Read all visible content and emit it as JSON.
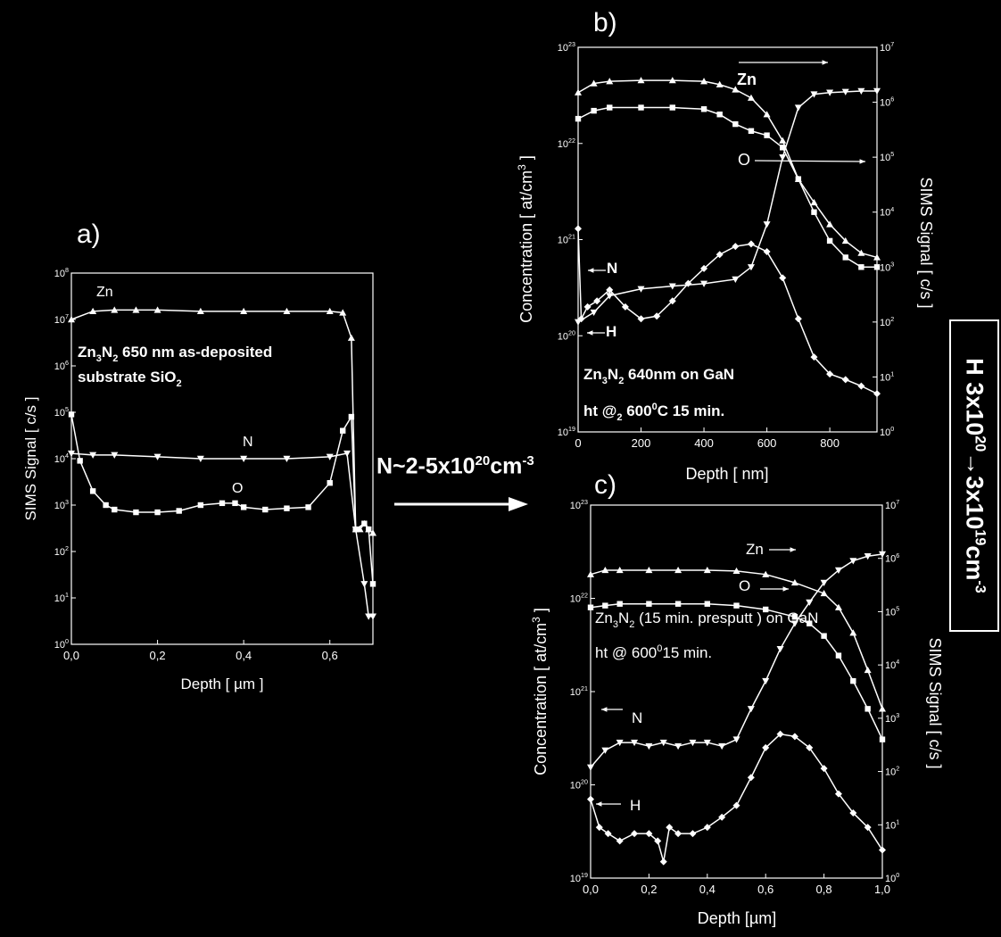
{
  "colors": {
    "background": "#000000",
    "foreground": "#ffffff"
  },
  "middle_note": {
    "main": "N~2-5x10",
    "exp": "20",
    "unit": "cm",
    "unit_exp": "-3"
  },
  "side_note": {
    "part1": "H 3x10",
    "exp1": "20",
    "arrow": "→",
    "part2": "3x10",
    "exp2": "19",
    "unit": "cm",
    "unit_exp": "-3"
  },
  "chart_data": [
    {
      "panel": "a",
      "type": "line",
      "panel_label": "a)",
      "xlabel": "Depth  [  µm  ]",
      "ylabel": "SIMS Signal  [  c/s  ]",
      "xlim": [
        0,
        0.7
      ],
      "ylim": [
        1,
        100000000
      ],
      "yscale": "log",
      "xticks": [
        "0,0",
        "0,2",
        "0,4",
        "0,6"
      ],
      "yticks_exp": [
        "0",
        "1",
        "2",
        "3",
        "4",
        "5",
        "6",
        "7",
        "8"
      ],
      "annotations": [
        "Zn",
        "N",
        "O"
      ],
      "inner_text": [
        {
          "base": "Zn",
          "sub1": "3",
          "mid": "N",
          "sub2": "2",
          "rest": " 650 nm as-deposited"
        },
        {
          "base": "substrate SiO",
          "sub1": "2"
        }
      ],
      "series": [
        {
          "name": "Zn",
          "marker": "triangle-up",
          "x": [
            0,
            0.05,
            0.1,
            0.15,
            0.2,
            0.3,
            0.4,
            0.5,
            0.6,
            0.63,
            0.65,
            0.66,
            0.67,
            0.68,
            0.69,
            0.7
          ],
          "values": [
            10000000,
            15000000,
            16000000,
            16000000,
            16000000,
            15000000,
            15000000,
            15000000,
            15000000,
            14000000,
            4000000,
            300,
            300,
            400,
            300,
            250
          ]
        },
        {
          "name": "N",
          "marker": "triangle-down",
          "x": [
            0,
            0.05,
            0.1,
            0.2,
            0.3,
            0.4,
            0.5,
            0.6,
            0.64,
            0.66,
            0.68,
            0.69,
            0.7
          ],
          "values": [
            13000,
            12000,
            12000,
            11000,
            10000,
            10000,
            10000,
            11000,
            13000,
            300,
            20,
            4,
            4
          ]
        },
        {
          "name": "O",
          "marker": "square",
          "x": [
            0,
            0.02,
            0.05,
            0.08,
            0.1,
            0.15,
            0.2,
            0.25,
            0.3,
            0.35,
            0.38,
            0.4,
            0.45,
            0.5,
            0.55,
            0.6,
            0.63,
            0.65,
            0.66,
            0.68,
            0.69,
            0.7
          ],
          "values": [
            90000,
            9000,
            2000,
            1000,
            800,
            700,
            700,
            750,
            1000,
            1100,
            1100,
            900,
            800,
            850,
            900,
            3000,
            40000,
            80000,
            300,
            400,
            300,
            20
          ]
        }
      ]
    },
    {
      "panel": "b",
      "type": "line",
      "panel_label": "b)",
      "xlabel": "Depth  [  nm]",
      "ylabel": "Concentration  [  at/cm",
      "ylabel_sup": "3",
      "ylabel_end": "  ]",
      "y2label": "SIMS Signal  [  c/s  ]",
      "xlim": [
        0,
        950
      ],
      "xticks": [
        "0",
        "200",
        "400",
        "600",
        "800"
      ],
      "ylim": [
        10000000000000000000,
        100000000000000000000000
      ],
      "yscale": "log",
      "yticks_exp": [
        "19",
        "20",
        "21",
        "22",
        "23"
      ],
      "y2ticks_exp": [
        "0",
        "1",
        "2",
        "3",
        "4",
        "5",
        "6",
        "7"
      ],
      "annotations": [
        "Zn",
        "O",
        "N",
        "H"
      ],
      "inner_text": [
        {
          "base": "Zn",
          "sub1": "3",
          "mid": "N",
          "sub2": "2",
          "rest": " 640nm on GaN"
        },
        {
          "base": "ht @",
          "sub1": "2",
          "rest": " 600",
          "sup": "0",
          "rest2": "C 15 min."
        }
      ],
      "series": [
        {
          "name": "Zn",
          "marker": "triangle-up",
          "axis": "right",
          "x": [
            0,
            50,
            100,
            200,
            300,
            400,
            450,
            500,
            550,
            600,
            650,
            700,
            750,
            800,
            850,
            900,
            950
          ],
          "values": [
            1500000,
            2200000,
            2400000,
            2500000,
            2500000,
            2400000,
            2100000,
            1700000,
            1200000,
            600000,
            200000,
            40000,
            15000,
            6000,
            3000,
            1800,
            1500
          ]
        },
        {
          "name": "O",
          "marker": "square",
          "axis": "right",
          "x": [
            0,
            50,
            100,
            200,
            300,
            400,
            450,
            500,
            550,
            600,
            650,
            700,
            750,
            800,
            850,
            900,
            950
          ],
          "values": [
            500000,
            700000,
            800000,
            800000,
            800000,
            750000,
            600000,
            400000,
            300000,
            250000,
            150000,
            40000,
            10000,
            3000,
            1500,
            1000,
            1000
          ]
        },
        {
          "name": "N",
          "marker": "triangle-down",
          "axis": "right",
          "x": [
            0,
            50,
            100,
            200,
            300,
            400,
            500,
            550,
            600,
            650,
            700,
            750,
            800,
            850,
            900,
            950
          ],
          "values": [
            100,
            150,
            300,
            400,
            450,
            500,
            600,
            1000,
            6000,
            100000,
            800000,
            1400000,
            1500000,
            1550000,
            1600000,
            1600000
          ]
        },
        {
          "name": "H",
          "marker": "diamond",
          "axis": "left",
          "x": [
            0,
            10,
            30,
            60,
            100,
            150,
            200,
            250,
            300,
            350,
            400,
            450,
            500,
            550,
            600,
            650,
            700,
            750,
            800,
            850,
            900,
            950
          ],
          "values": [
            1300000000000000000000,
            150000000000000000000,
            200000000000000000000,
            230000000000000000000,
            300000000000000000000,
            200000000000000000000,
            150000000000000000000,
            160000000000000000000,
            230000000000000000000,
            350000000000000000000,
            500000000000000000000,
            700000000000000000000,
            850000000000000000000,
            900000000000000000000,
            750000000000000000000,
            400000000000000000000,
            150000000000000000000,
            60000000000000000000,
            40000000000000000000,
            35000000000000000000,
            30000000000000000000,
            25000000000000000000
          ]
        }
      ]
    },
    {
      "panel": "c",
      "type": "line",
      "panel_label": "c)",
      "xlabel": "Depth [µm]",
      "ylabel": "Concentration  [  at/cm",
      "ylabel_sup": "3",
      "ylabel_end": "  ]",
      "y2label": "SIMS Signal  [  c/s  ]",
      "xlim": [
        0,
        1.0
      ],
      "xticks": [
        "0,0",
        "0,2",
        "0,4",
        "0,6",
        "0,8",
        "1,0"
      ],
      "ylim": [
        10000000000000000000,
        100000000000000000000000
      ],
      "yscale": "log",
      "yticks_exp": [
        "19",
        "20",
        "21",
        "22",
        "23"
      ],
      "y2ticks_exp": [
        "0",
        "1",
        "2",
        "3",
        "4",
        "5",
        "6",
        "7"
      ],
      "annotations": [
        "Zn",
        "O",
        "N",
        "H"
      ],
      "inner_text": [
        {
          "base": "Zn",
          "sub1": "3",
          "mid": "N",
          "sub2": "2",
          "rest": "  (15 min. presputt ) on GaN"
        },
        {
          "base": "ht @ 600",
          "sup": "0",
          "rest": "15 min."
        }
      ],
      "series": [
        {
          "name": "Zn",
          "marker": "triangle-up",
          "axis": "right",
          "x": [
            0,
            0.05,
            0.1,
            0.2,
            0.3,
            0.4,
            0.5,
            0.6,
            0.7,
            0.8,
            0.85,
            0.9,
            0.95,
            1.0
          ],
          "values": [
            500000,
            600000,
            600000,
            600000,
            600000,
            600000,
            580000,
            500000,
            350000,
            220000,
            120000,
            40000,
            8000,
            1500
          ]
        },
        {
          "name": "O",
          "marker": "square",
          "axis": "right",
          "x": [
            0,
            0.05,
            0.1,
            0.2,
            0.3,
            0.4,
            0.5,
            0.6,
            0.7,
            0.75,
            0.8,
            0.85,
            0.9,
            0.95,
            1.0
          ],
          "values": [
            120000,
            130000,
            140000,
            140000,
            140000,
            140000,
            130000,
            110000,
            80000,
            60000,
            35000,
            15000,
            5000,
            1500,
            400
          ]
        },
        {
          "name": "N",
          "marker": "triangle-down",
          "axis": "right",
          "x": [
            0,
            0.05,
            0.1,
            0.15,
            0.2,
            0.25,
            0.3,
            0.35,
            0.4,
            0.45,
            0.5,
            0.55,
            0.6,
            0.65,
            0.7,
            0.75,
            0.8,
            0.85,
            0.9,
            0.95,
            1.0
          ],
          "values": [
            120,
            250,
            350,
            350,
            300,
            350,
            300,
            350,
            350,
            300,
            400,
            1500,
            5000,
            20000,
            60000,
            150000,
            350000,
            600000,
            900000,
            1100000,
            1200000
          ]
        },
        {
          "name": "H",
          "marker": "diamond",
          "axis": "left",
          "x": [
            0,
            0.03,
            0.06,
            0.1,
            0.15,
            0.2,
            0.23,
            0.25,
            0.27,
            0.3,
            0.35,
            0.4,
            0.45,
            0.5,
            0.55,
            0.6,
            0.65,
            0.7,
            0.75,
            0.8,
            0.85,
            0.9,
            0.95,
            1.0
          ],
          "values": [
            70000000000000000000,
            35000000000000000000,
            30000000000000000000,
            25000000000000000000,
            30000000000000000000,
            30000000000000000000,
            25000000000000000000,
            15000000000000000000,
            35000000000000000000,
            30000000000000000000,
            30000000000000000000,
            35000000000000000000,
            45000000000000000000,
            60000000000000000000,
            120000000000000000000,
            250000000000000000000,
            350000000000000000000,
            330000000000000000000,
            250000000000000000000,
            150000000000000000000,
            80000000000000000000,
            50000000000000000000,
            35000000000000000000,
            20000000000000000000
          ]
        }
      ]
    }
  ]
}
